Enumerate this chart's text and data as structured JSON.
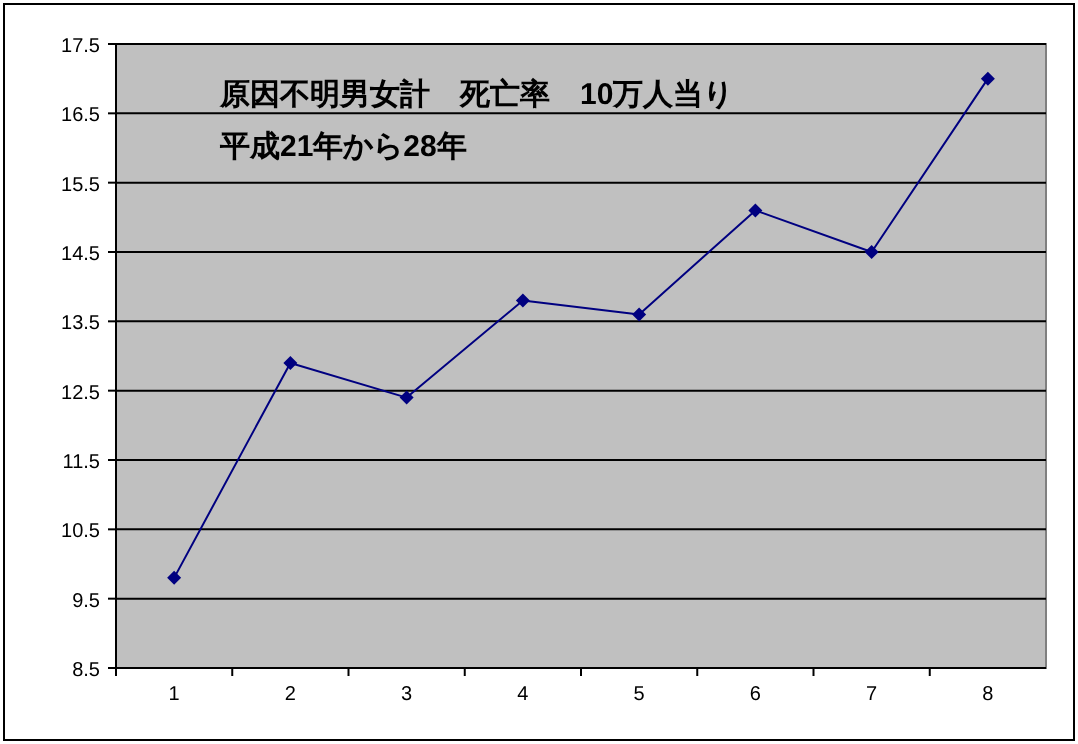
{
  "chart_data": {
    "type": "line",
    "title": "原因不明男女計　死亡率　10万人当り",
    "subtitle": "平成21年から28年",
    "categories": [
      "1",
      "2",
      "3",
      "4",
      "5",
      "6",
      "7",
      "8"
    ],
    "series": [
      {
        "color": "#000080",
        "values": [
          9.8,
          12.9,
          12.4,
          13.8,
          13.6,
          15.1,
          14.5,
          17.0
        ]
      }
    ],
    "ylim": [
      8.5,
      17.5
    ],
    "yticks": [
      8.5,
      9.5,
      10.5,
      11.5,
      12.5,
      13.5,
      14.5,
      15.5,
      16.5,
      17.5
    ],
    "grid": "y",
    "marker": "diamond",
    "line_style": "solid"
  }
}
